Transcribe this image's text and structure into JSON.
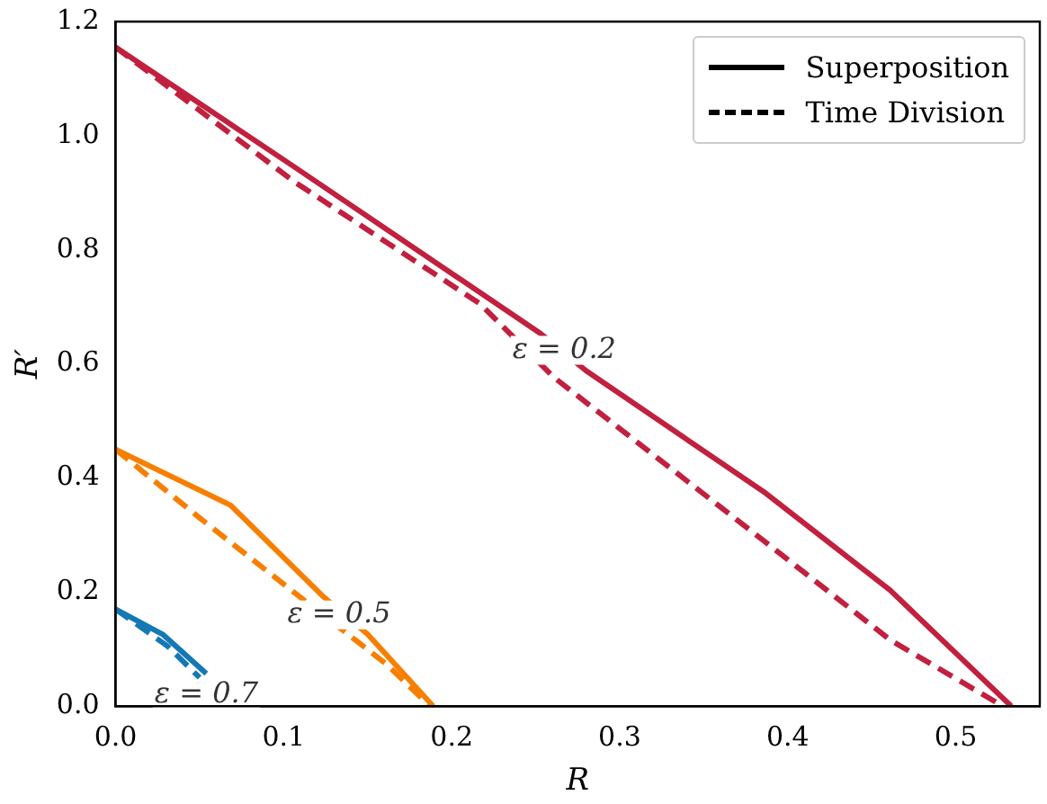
{
  "chart_data": {
    "type": "line",
    "xlabel": "R",
    "ylabel": "R′",
    "xlim": [
      0,
      0.55
    ],
    "ylim": [
      0,
      1.2
    ],
    "xticks": [
      {
        "value": 0,
        "label": "0.0"
      },
      0.1,
      0.2,
      0.3,
      0.4,
      0.5
    ],
    "yticks": [
      {
        "value": 0,
        "label": "0.0"
      },
      0.2,
      0.4,
      0.6,
      0.8,
      {
        "value": 1,
        "label": "1.0"
      },
      1.2
    ],
    "grid": false,
    "marker": "none",
    "series": [
      {
        "color": "#c1203e",
        "line_style": "solid",
        "x": [
          0,
          0.106,
          0.253,
          0.28,
          0.387,
          0.461,
          0.533
        ],
        "values": [
          1.155,
          0.946,
          0.653,
          0.588,
          0.373,
          0.203,
          0
        ]
      },
      {
        "color": "#c1203e",
        "line_style": "dashed",
        "x": [
          0,
          0.106,
          0.217,
          0.261,
          0.387,
          0.461,
          0.528
        ],
        "values": [
          1.155,
          0.92,
          0.705,
          0.576,
          0.287,
          0.116,
          0
        ]
      },
      {
        "color": "#f77f00",
        "line_style": "solid",
        "x": [
          0,
          0.0685,
          0.124,
          0.15,
          0.189
        ],
        "values": [
          0.45,
          0.352,
          0.191,
          0.126,
          0
        ]
      },
      {
        "color": "#f77f00",
        "line_style": "dashed",
        "x": [
          0,
          0.05,
          0.106,
          0.161,
          0.187
        ],
        "values": [
          0.45,
          0.33,
          0.2,
          0.074,
          0
        ]
      },
      {
        "color": "#1478b4",
        "line_style": "solid",
        "x": [
          0,
          0.028,
          0.054
        ],
        "values": [
          0.17,
          0.126,
          0.057
        ]
      },
      {
        "color": "#1478b4",
        "line_style": "dashed",
        "x": [
          0,
          0.031,
          0.05
        ],
        "values": [
          0.17,
          0.105,
          0.05
        ]
      }
    ],
    "annotations": [
      {
        "text": "ε = 0.2",
        "x": 0.267,
        "y": 0.624
      },
      {
        "text": "ε = 0.5",
        "x": 0.133,
        "y": 0.16
      },
      {
        "text": "ε = 0.7",
        "x": 0.054,
        "y": 0.057
      },
      "Superposition",
      "Time Division"
    ]
  }
}
